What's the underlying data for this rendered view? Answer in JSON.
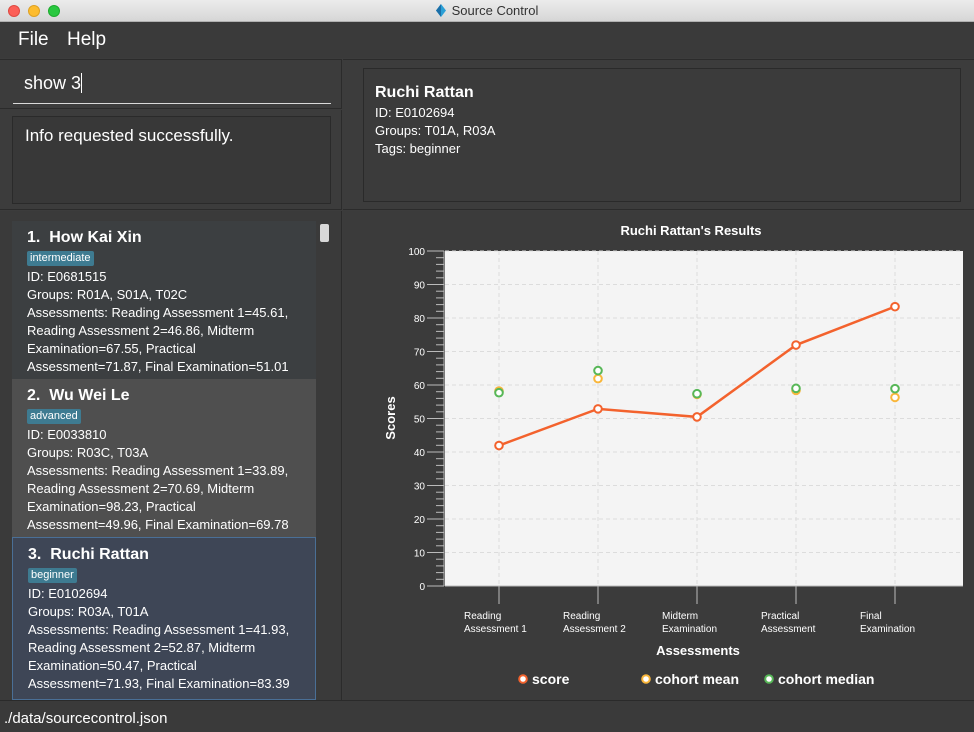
{
  "window": {
    "title": "Source Control"
  },
  "menu": {
    "file": "File",
    "help": "Help"
  },
  "command": {
    "value": "show 3"
  },
  "result": {
    "message": "Info requested successfully."
  },
  "students": [
    {
      "index": "1.",
      "name": "How Kai Xin",
      "tag": "intermediate",
      "id": "ID: E0681515",
      "groups": "Groups: R01A, S01A, T02C",
      "assess_lines": [
        "Assessments: Reading Assessment 1=45.61,",
        "Reading Assessment 2=46.86, Midterm",
        "Examination=67.55, Practical",
        "Assessment=71.87, Final Examination=51.01"
      ]
    },
    {
      "index": "2.",
      "name": "Wu Wei Le",
      "tag": "advanced",
      "id": "ID: E0033810",
      "groups": "Groups: R03C, T03A",
      "assess_lines": [
        "Assessments: Reading Assessment 1=33.89,",
        "Reading Assessment 2=70.69, Midterm",
        "Examination=98.23, Practical",
        "Assessment=49.96, Final Examination=69.78"
      ]
    },
    {
      "index": "3.",
      "name": "Ruchi Rattan",
      "tag": "beginner",
      "id": "ID: E0102694",
      "groups": "Groups: R03A, T01A",
      "assess_lines": [
        "Assessments: Reading Assessment 1=41.93,",
        "Reading Assessment 2=52.87, Midterm",
        "Examination=50.47, Practical",
        "Assessment=71.93, Final Examination=83.39"
      ]
    }
  ],
  "info": {
    "name": "Ruchi Rattan",
    "id": "ID: E0102694",
    "groups": "Groups: T01A, R03A",
    "tags": "Tags: beginner"
  },
  "chart_data": {
    "type": "line",
    "title": "Ruchi Rattan's Results",
    "xlabel": "Assessments",
    "ylabel": "Scores",
    "ylim": [
      0,
      100
    ],
    "yticks": [
      0,
      10,
      20,
      30,
      40,
      50,
      60,
      70,
      80,
      90,
      100
    ],
    "categories": [
      [
        "Reading",
        "Assessment 1"
      ],
      [
        "Reading",
        "Assessment 2"
      ],
      [
        "Midterm",
        "Examination"
      ],
      [
        "Practical",
        "Assessment"
      ],
      [
        "Final",
        "Examination"
      ]
    ],
    "series": [
      {
        "name": "score",
        "color": "#f3622d",
        "line": true,
        "values": [
          41.93,
          52.87,
          50.47,
          71.93,
          83.39
        ]
      },
      {
        "name": "cohort mean",
        "color": "#f9b63a",
        "line": false,
        "values": [
          58.2,
          61.9,
          57.2,
          58.4,
          56.3
        ]
      },
      {
        "name": "cohort median",
        "color": "#57b757",
        "line": false,
        "values": [
          57.7,
          64.3,
          57.4,
          59.0,
          58.9
        ]
      }
    ],
    "legend": "bottom",
    "grid": true
  },
  "status": {
    "path": "./data/sourcecontrol.json"
  }
}
